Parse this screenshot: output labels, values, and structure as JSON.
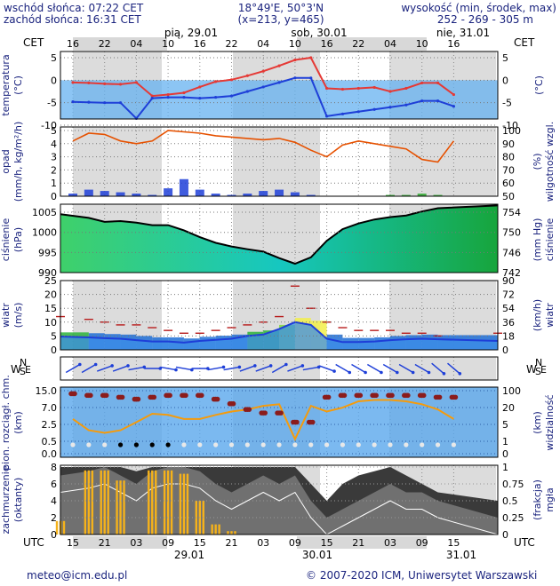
{
  "header": {
    "sunrise": "wschód słońca: 07:22 CET",
    "sunset": "zachód słońca: 16:31 CET",
    "coords": "18°49'E, 50°3'N",
    "grid": "(x=213, y=465)",
    "elev_title": "wysokość (min, środek, max)",
    "elev_values": "252 - 269 - 305 m"
  },
  "time": {
    "top_zone": "CET",
    "bottom_zone": "UTC",
    "top_ticks": [
      "16",
      "22",
      "04",
      "10",
      "16",
      "22",
      "04",
      "10",
      "16",
      "22",
      "04",
      "10",
      "16"
    ],
    "bottom_ticks": [
      "15",
      "21",
      "03",
      "09",
      "15",
      "21",
      "03",
      "09",
      "15",
      "21",
      "03",
      "09",
      "15"
    ],
    "top_days": [
      "pią, 29.01",
      "sob, 30.01",
      "nie, 31.01"
    ],
    "bottom_days": [
      "29.01",
      "30.01",
      "31.01"
    ]
  },
  "footer": {
    "email": "meteo@icm.edu.pl",
    "copyright": "© 2007-2020 ICM, Uniwersytet Warszawski"
  },
  "chart_data": [
    {
      "type": "line",
      "panel": "temperature",
      "ylabel": "temperatura (°C)",
      "ylabel_right": "(°C)",
      "ylim": [
        -10,
        5
      ],
      "yticks": [
        5,
        0,
        -5,
        -10
      ],
      "x_hours_utc_from_start": [
        0,
        3,
        6,
        9,
        12,
        15,
        18,
        21,
        24,
        27,
        30,
        33,
        36,
        39,
        42,
        45,
        48,
        51,
        54,
        57,
        60,
        63,
        66,
        69,
        72
      ],
      "series": [
        {
          "name": "temperature",
          "color": "#e53935",
          "values": [
            -0.5,
            -0.6,
            -0.8,
            -0.9,
            -0.5,
            -3.5,
            -3.2,
            -2.8,
            -1.5,
            -0.3,
            0.1,
            1.0,
            2.0,
            3.2,
            4.5,
            5.0,
            -1.8,
            -2.0,
            -1.8,
            -1.6,
            -2.5,
            -1.8,
            -0.6,
            -0.6,
            -3.2
          ]
        },
        {
          "name": "dew point",
          "color": "#1e3fd8",
          "values": [
            -4.8,
            -4.9,
            -5.0,
            -5.0,
            -8.5,
            -4.0,
            -3.8,
            -3.8,
            -4.0,
            -3.8,
            -3.5,
            -2.5,
            -1.5,
            -0.5,
            0.5,
            0.5,
            -8.0,
            -7.5,
            -7.0,
            -6.5,
            -6.0,
            -5.5,
            -4.6,
            -4.6,
            -5.8
          ]
        }
      ]
    },
    {
      "type": "bar",
      "panel": "precipitation",
      "ylabel": "opad (mm/h, kg/m²/h)",
      "ylabel_right": "(%) wilgotność wzgl.",
      "ylim": [
        0,
        5
      ],
      "yticks": [
        5,
        4,
        3,
        2,
        1,
        0
      ],
      "y2lim": [
        50,
        100
      ],
      "y2ticks": [
        100,
        90,
        80,
        70,
        60,
        50
      ],
      "x_hours_utc_from_start": [
        0,
        3,
        6,
        9,
        12,
        15,
        18,
        21,
        24,
        27,
        30,
        33,
        36,
        39,
        42,
        45,
        48,
        51,
        54,
        57,
        60,
        63,
        66,
        69,
        72
      ],
      "series": [
        {
          "name": "precipitation",
          "color": "#1e3fd8",
          "values": [
            0.2,
            0.5,
            0.4,
            0.3,
            0.2,
            0.1,
            0.6,
            1.3,
            0.5,
            0.2,
            0.1,
            0.2,
            0.4,
            0.5,
            0.3,
            0.1,
            0.0,
            0.0,
            0.0,
            0.0,
            0.1,
            0.1,
            0.2,
            0.1,
            0.0
          ]
        },
        {
          "name": "relative humidity",
          "color": "#e65100",
          "values": [
            92,
            98,
            97,
            92,
            90,
            92,
            100,
            99,
            98,
            96,
            95,
            94,
            93,
            94,
            91,
            85,
            80,
            89,
            92,
            90,
            88,
            86,
            78,
            76,
            92
          ]
        }
      ]
    },
    {
      "type": "area",
      "panel": "pressure",
      "ylabel": "ciśnienie (hPa)",
      "ylabel_right": "(mm Hg) ciśnienie",
      "ylim": [
        990,
        1007
      ],
      "yticks": [
        1005,
        1000,
        995,
        990
      ],
      "y2ticks": [
        754,
        750,
        746,
        742
      ],
      "x_hours_utc_from_start": [
        0,
        3,
        6,
        9,
        12,
        15,
        18,
        21,
        24,
        27,
        30,
        33,
        36,
        39,
        42,
        45,
        48,
        51,
        54,
        57,
        60,
        63,
        66,
        69,
        72
      ],
      "series": [
        {
          "name": "pressure",
          "color": "#000000",
          "values": [
            1004.5,
            1003.6,
            1002.6,
            1002.8,
            1002.4,
            1001.8,
            1001.8,
            1000.5,
            998.8,
            997.4,
            996.5,
            995.8,
            995.2,
            993.6,
            992.2,
            993.8,
            997.9,
            1000.8,
            1002.2,
            1003.2,
            1003.8,
            1004.2,
            1005.2,
            1006.0,
            1006.7
          ]
        }
      ]
    },
    {
      "type": "area",
      "panel": "wind",
      "ylabel": "wiatr (m/s)",
      "ylabel_right": "(km/h) wiatr",
      "ylim": [
        0,
        25
      ],
      "yticks": [
        25,
        20,
        15,
        10,
        5,
        0
      ],
      "y2ticks": [
        90,
        72,
        54,
        36,
        18,
        0
      ],
      "x_hours_utc_from_start": [
        0,
        3,
        6,
        9,
        12,
        15,
        18,
        21,
        24,
        27,
        30,
        33,
        36,
        39,
        42,
        45,
        48,
        51,
        54,
        57,
        60,
        63,
        66,
        69,
        72
      ],
      "series": [
        {
          "name": "wind speed",
          "color": "#1e3fd8",
          "values": [
            4.8,
            4.5,
            4.2,
            4.0,
            3.5,
            3.0,
            3.0,
            2.6,
            3.2,
            3.6,
            4.0,
            5.0,
            5.5,
            7.5,
            10.0,
            9.0,
            4.0,
            2.8,
            2.8,
            3.0,
            3.5,
            3.8,
            4.0,
            3.8,
            3.2
          ]
        },
        {
          "name": "wind gusts",
          "color": "#b71c1c",
          "values": [
            12,
            11,
            10,
            9,
            9,
            8,
            7,
            6,
            6,
            7,
            8,
            9,
            10,
            12,
            23,
            15,
            10,
            8,
            7,
            7,
            7,
            6,
            6,
            5,
            6
          ]
        }
      ]
    },
    {
      "type": "scatter",
      "panel": "wind direction",
      "compass_labels": [
        "W",
        "N",
        "S",
        "E"
      ],
      "x_hours_utc_from_start": [
        0,
        3,
        6,
        9,
        12,
        15,
        18,
        21,
        24,
        27,
        30,
        33,
        36,
        39,
        42,
        45,
        48,
        51,
        54,
        57,
        60,
        63,
        66,
        69,
        72
      ],
      "values_deg": [
        240,
        240,
        250,
        250,
        260,
        270,
        280,
        280,
        270,
        260,
        260,
        250,
        250,
        240,
        250,
        260,
        290,
        300,
        300,
        300,
        300,
        300,
        300,
        310,
        310
      ]
    },
    {
      "type": "line",
      "panel": "visibility",
      "ylabel": "pion. rozciągł. chm. (km)",
      "ylabel_right": "(km) widzialność",
      "yticks": [
        "15.0",
        "7.0",
        "2.5",
        "0.5",
        "0.0"
      ],
      "y2ticks": [
        100,
        20,
        5,
        1,
        0
      ],
      "x_hours_utc_from_start": [
        0,
        3,
        6,
        9,
        12,
        15,
        18,
        21,
        24,
        27,
        30,
        33,
        36,
        39,
        42,
        45,
        48,
        51,
        54,
        57,
        60,
        63,
        66,
        69,
        72
      ],
      "series": [
        {
          "name": "visibility",
          "color": "#f59b0c",
          "values": [
            1.2,
            0.6,
            0.5,
            0.6,
            1.0,
            1.6,
            1.5,
            1.2,
            1.2,
            1.5,
            1.8,
            2.0,
            2.4,
            2.6,
            0.3,
            2.4,
            1.8,
            2.2,
            3.0,
            3.2,
            3.2,
            3.0,
            2.6,
            2.0,
            1.2
          ]
        },
        {
          "name": "cloud top height",
          "color": "#8b1c1c",
          "values": [
            13,
            12,
            12,
            11,
            10,
            11,
            12,
            12,
            12,
            10,
            8,
            6,
            5,
            5,
            3,
            3,
            11,
            12,
            12,
            12,
            12,
            12,
            12,
            11,
            11
          ]
        }
      ]
    },
    {
      "type": "area",
      "panel": "cloud cover and fog",
      "ylabel": "zachmurzenie (oktanty)",
      "ylabel_right": "(frakcja) mgła",
      "ylim": [
        0,
        8
      ],
      "yticks": [
        8,
        6,
        4,
        2,
        0
      ],
      "y2ticks": [
        1,
        0.75,
        0.5,
        0.25,
        0
      ],
      "x_hours_utc_from_start": [
        0,
        3,
        6,
        9,
        12,
        15,
        18,
        21,
        24,
        27,
        30,
        33,
        36,
        39,
        42,
        45,
        48,
        51,
        54,
        57,
        60,
        63,
        66,
        69,
        72
      ],
      "series": [
        {
          "name": "total cloud",
          "color": "#3a3a3a",
          "values": [
            8,
            8,
            8,
            8,
            7.5,
            8,
            8,
            8,
            8,
            8,
            8,
            8,
            8,
            8,
            8,
            6,
            4,
            6,
            7,
            7.5,
            8,
            7,
            6,
            5,
            4
          ]
        },
        {
          "name": "low cloud",
          "color": "#707070",
          "values": [
            7,
            7.5,
            8,
            7,
            6,
            7.5,
            8,
            8,
            7.5,
            6,
            5,
            6,
            7,
            6,
            7,
            4,
            2,
            3,
            4,
            5,
            6,
            5,
            5,
            4,
            2
          ]
        },
        {
          "name": "fog",
          "color": "#f5b21b",
          "values": [
            0.2,
            0.95,
            0.95,
            0.8,
            0.0,
            0.95,
            0.95,
            0.9,
            0.5,
            0.15,
            0.05,
            0.0,
            0.0,
            0.0,
            0.0,
            0.0,
            0.0,
            0.0,
            0.0,
            0.0,
            0.0,
            0.0,
            0.0,
            0.0,
            0.0
          ]
        }
      ]
    }
  ]
}
